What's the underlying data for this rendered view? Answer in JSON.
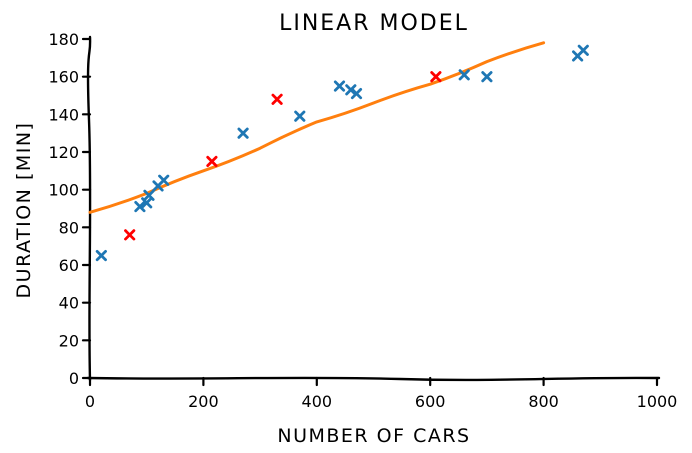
{
  "chart_data": {
    "type": "scatter",
    "title": "LINEAR MODEL",
    "xlabel": "NUMBER OF CARS",
    "ylabel": "DURATION [MIN]",
    "xlim": [
      0,
      1000
    ],
    "ylim": [
      0,
      180
    ],
    "x_ticks": [
      0,
      200,
      400,
      600,
      800,
      1000
    ],
    "y_ticks": [
      0,
      20,
      40,
      60,
      80,
      100,
      120,
      140,
      160,
      180
    ],
    "grid": false,
    "colors": {
      "blue": "#1f77b4",
      "red": "#ff0000",
      "line": "#ff7f0e"
    },
    "series": [
      {
        "marker": "x",
        "color": "#1f77b4",
        "points": [
          {
            "x": 20,
            "y": 65
          },
          {
            "x": 88,
            "y": 91
          },
          {
            "x": 100,
            "y": 93
          },
          {
            "x": 104,
            "y": 97
          },
          {
            "x": 120,
            "y": 102
          },
          {
            "x": 130,
            "y": 105
          },
          {
            "x": 270,
            "y": 130
          },
          {
            "x": 370,
            "y": 139
          },
          {
            "x": 440,
            "y": 155
          },
          {
            "x": 460,
            "y": 153
          },
          {
            "x": 470,
            "y": 151
          },
          {
            "x": 660,
            "y": 161
          },
          {
            "x": 700,
            "y": 160
          },
          {
            "x": 860,
            "y": 171
          },
          {
            "x": 870,
            "y": 174
          }
        ]
      },
      {
        "marker": "x",
        "color": "#ff0000",
        "points": [
          {
            "x": 70,
            "y": 76
          },
          {
            "x": 215,
            "y": 115
          },
          {
            "x": 330,
            "y": 148
          },
          {
            "x": 610,
            "y": 160
          }
        ]
      },
      {
        "type": "line",
        "color": "#ff7f0e",
        "points": [
          {
            "x": 0,
            "y": 88
          },
          {
            "x": 100,
            "y": 98
          },
          {
            "x": 200,
            "y": 110
          },
          {
            "x": 300,
            "y": 122
          },
          {
            "x": 400,
            "y": 136
          },
          {
            "x": 500,
            "y": 146
          },
          {
            "x": 600,
            "y": 156
          },
          {
            "x": 700,
            "y": 168
          },
          {
            "x": 800,
            "y": 178
          }
        ]
      }
    ]
  }
}
